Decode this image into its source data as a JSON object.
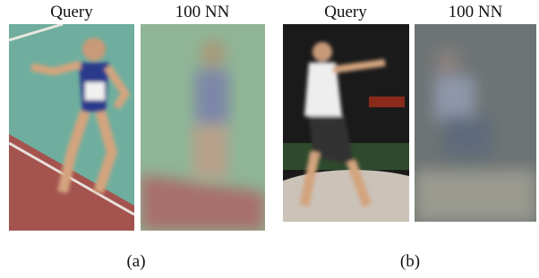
{
  "panels": [
    {
      "images": [
        {
          "label": "Query"
        },
        {
          "label": "100 NN"
        }
      ],
      "caption": "(a)"
    },
    {
      "images": [
        {
          "label": "Query"
        },
        {
          "label": "100 NN"
        }
      ],
      "caption": "(b)"
    }
  ]
}
